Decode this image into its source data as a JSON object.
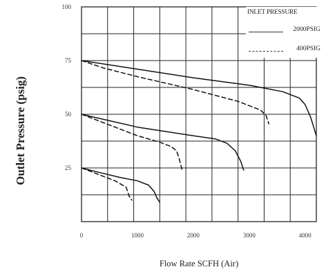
{
  "chart_data": {
    "type": "line",
    "xlabel": "Flow Rate SCFH  (Air)",
    "ylabel": "Outlet Pressure (psig)",
    "x_ticks": [
      "0",
      "1000",
      "2000",
      "3000",
      "4000"
    ],
    "y_ticks": [
      "100",
      "75",
      "50",
      "25"
    ],
    "xlim": [
      0,
      4200
    ],
    "ylim": [
      0,
      100
    ],
    "grid": true,
    "legend": {
      "title": "INLET PRESSURE",
      "placement": "top-right",
      "entries": [
        {
          "label": "2000PSIG",
          "style": "solid"
        },
        {
          "label": "400PSIG",
          "style": "dashed"
        }
      ]
    },
    "series": [
      {
        "group": "2000PSIG",
        "style": "solid",
        "x": [
          0,
          1000,
          2000,
          3000,
          3600,
          3900,
          4000,
          4100,
          4200
        ],
        "y": [
          75,
          71,
          67,
          63.5,
          60.5,
          57.5,
          54.5,
          48.5,
          40
        ]
      },
      {
        "group": "400PSIG",
        "style": "dashed",
        "x": [
          0,
          400,
          1000,
          2000,
          2800,
          3200,
          3300,
          3350
        ],
        "y": [
          75,
          71.5,
          67.5,
          61.5,
          56,
          52,
          49.5,
          45.5
        ]
      },
      {
        "group": "2000PSIG",
        "style": "solid",
        "x": [
          0,
          500,
          1000,
          1500,
          2000,
          2400,
          2600,
          2750,
          2850,
          2900
        ],
        "y": [
          50,
          47,
          44,
          42,
          40,
          38.5,
          36.5,
          33,
          28,
          24
        ]
      },
      {
        "group": "400PSIG",
        "style": "dashed",
        "x": [
          0,
          400,
          1000,
          1400,
          1600,
          1700,
          1750,
          1800
        ],
        "y": [
          50,
          46,
          40,
          37,
          35,
          33,
          29,
          24
        ]
      },
      {
        "group": "2000PSIG",
        "style": "solid",
        "x": [
          0,
          300,
          700,
          1000,
          1200,
          1300,
          1350,
          1400
        ],
        "y": [
          25,
          23,
          20.5,
          19,
          17,
          14,
          11,
          9
        ]
      },
      {
        "group": "400PSIG",
        "style": "dashed",
        "x": [
          0,
          300,
          600,
          800,
          850,
          900
        ],
        "y": [
          25,
          22,
          19,
          16,
          12,
          10
        ]
      }
    ]
  }
}
